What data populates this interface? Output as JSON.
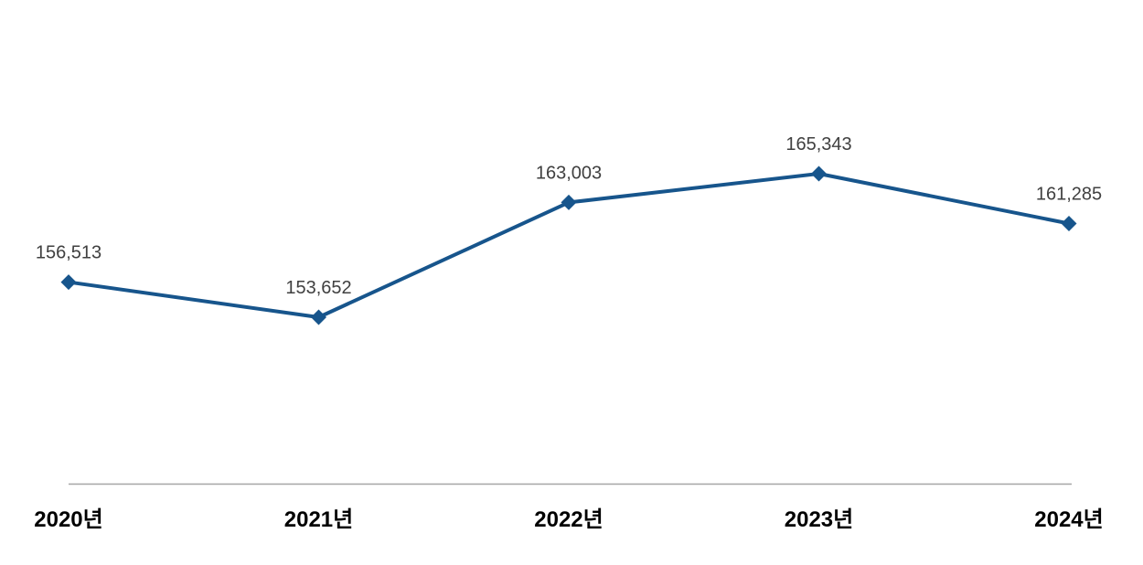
{
  "chart_data": {
    "type": "line",
    "categories": [
      "2020년",
      "2021년",
      "2022년",
      "2023년",
      "2024년"
    ],
    "values": [
      156513,
      153652,
      163003,
      165343,
      161285
    ],
    "value_labels": [
      "156,513",
      "153,652",
      "163,003",
      "165,343",
      "161,285"
    ],
    "series": [
      {
        "name": "annual-value",
        "values": [
          156513,
          153652,
          163003,
          165343,
          161285
        ]
      }
    ],
    "title": "",
    "xlabel": "",
    "ylabel": "",
    "marker_shape": "diamond",
    "grid": false,
    "legend": false,
    "y_axis_visible": false,
    "x_axis_line_visible": true,
    "colors": {
      "line": "#17558C",
      "marker": "#17558C",
      "data_label": "#404040",
      "tick_label": "#000000",
      "axis_line": "#A6A6A6",
      "background": "#FFFFFF"
    }
  }
}
